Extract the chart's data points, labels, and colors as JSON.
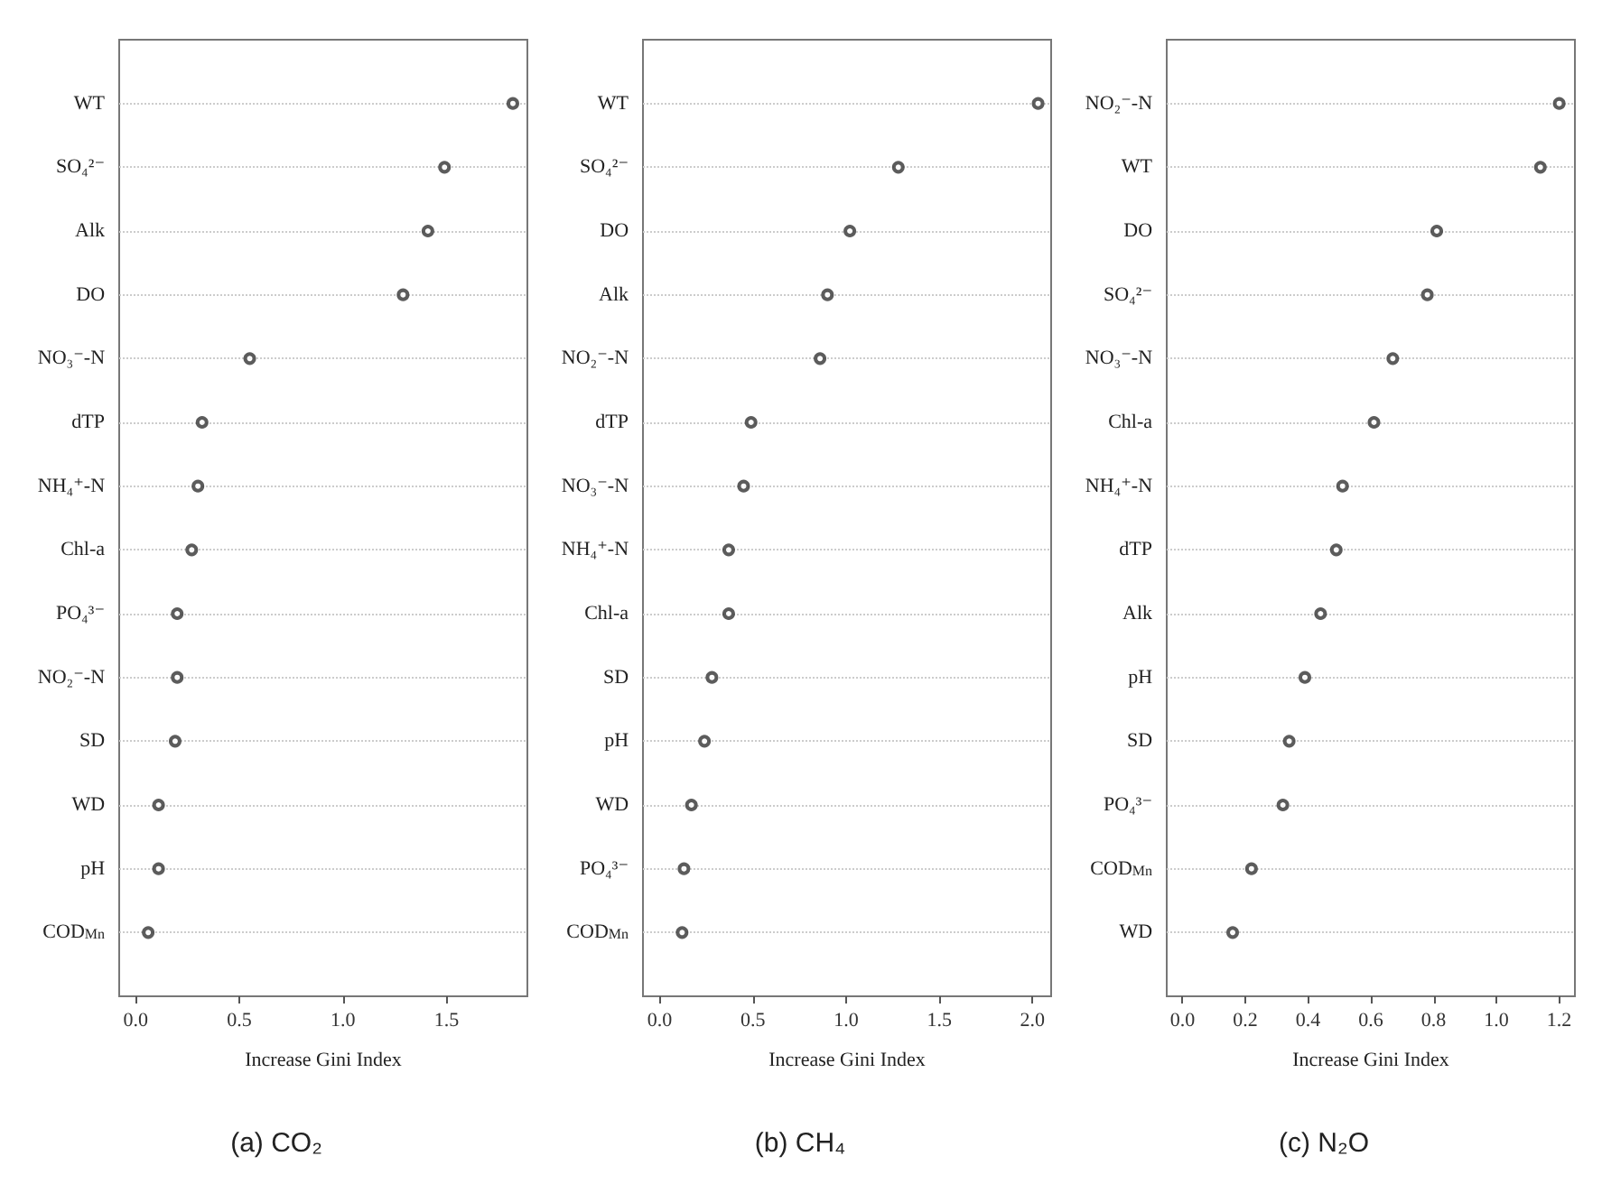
{
  "chart_data": [
    {
      "type": "scatter",
      "orientation": "horizontal",
      "title": "(a) CO₂",
      "xlabel": "Increase Gini Index",
      "categories": [
        "WT",
        "SO₄²⁻",
        "Alk",
        "DO",
        "NO₃⁻-N",
        "dTP",
        "NH₄⁺-N",
        "Chl-a",
        "PO₄³⁻",
        "NO₂⁻-N",
        "SD",
        "WD",
        "pH",
        "COD$_{Mn}$"
      ],
      "values": [
        1.82,
        1.49,
        1.41,
        1.29,
        0.55,
        0.32,
        0.3,
        0.27,
        0.2,
        0.2,
        0.19,
        0.11,
        0.11,
        0.06
      ],
      "color": "#333333",
      "xlim": [
        -0.08,
        1.89
      ],
      "xticks": [
        {
          "value": 0,
          "label": "0.0"
        },
        0.5,
        {
          "value": 1,
          "label": "1.0"
        },
        1.5
      ],
      "grid": "y",
      "marker": "circle"
    },
    {
      "type": "scatter",
      "orientation": "horizontal",
      "title": "(b) CH₄",
      "xlabel": "Increase Gini Index",
      "categories": [
        "WT",
        "SO₄²⁻",
        "DO",
        "Alk",
        "NO₂⁻-N",
        "dTP",
        "NO₃⁻-N",
        "NH₄⁺-N",
        "Chl-a",
        "SD",
        "pH",
        "WD",
        "PO₄³⁻",
        "COD$_{Mn}$"
      ],
      "values": [
        2.03,
        1.28,
        1.02,
        0.9,
        0.86,
        0.49,
        0.45,
        0.37,
        0.37,
        0.28,
        0.24,
        0.17,
        0.13,
        0.12
      ],
      "color": "#333333",
      "xlim": [
        -0.09,
        2.1
      ],
      "xticks": [
        {
          "value": 0,
          "label": "0.0"
        },
        0.5,
        {
          "value": 1,
          "label": "1.0"
        },
        1.5,
        {
          "value": 2,
          "label": "2.0"
        }
      ],
      "grid": "y",
      "marker": "circle"
    },
    {
      "type": "scatter",
      "orientation": "horizontal",
      "title": "(c) N₂O",
      "xlabel": "Increase Gini Index",
      "categories": [
        "NO₂⁻-N",
        "WT",
        "DO",
        "SO₄²⁻",
        "NO₃⁻-N",
        "Chl-a",
        "NH₄⁺-N",
        "dTP",
        "Alk",
        "pH",
        "SD",
        "PO₄³⁻",
        "COD$_{Mn}$",
        "WD"
      ],
      "values": [
        1.2,
        1.14,
        0.81,
        0.78,
        0.67,
        0.61,
        0.51,
        0.49,
        0.44,
        0.39,
        0.34,
        0.32,
        0.22,
        0.16
      ],
      "color": "#333333",
      "xlim": [
        -0.05,
        1.25
      ],
      "xticks": [
        {
          "value": 0,
          "label": "0.0"
        },
        0.2,
        0.4,
        0.6,
        0.8,
        {
          "value": 1,
          "label": "1.0"
        },
        1.2
      ],
      "grid": "y",
      "marker": "circle"
    }
  ]
}
